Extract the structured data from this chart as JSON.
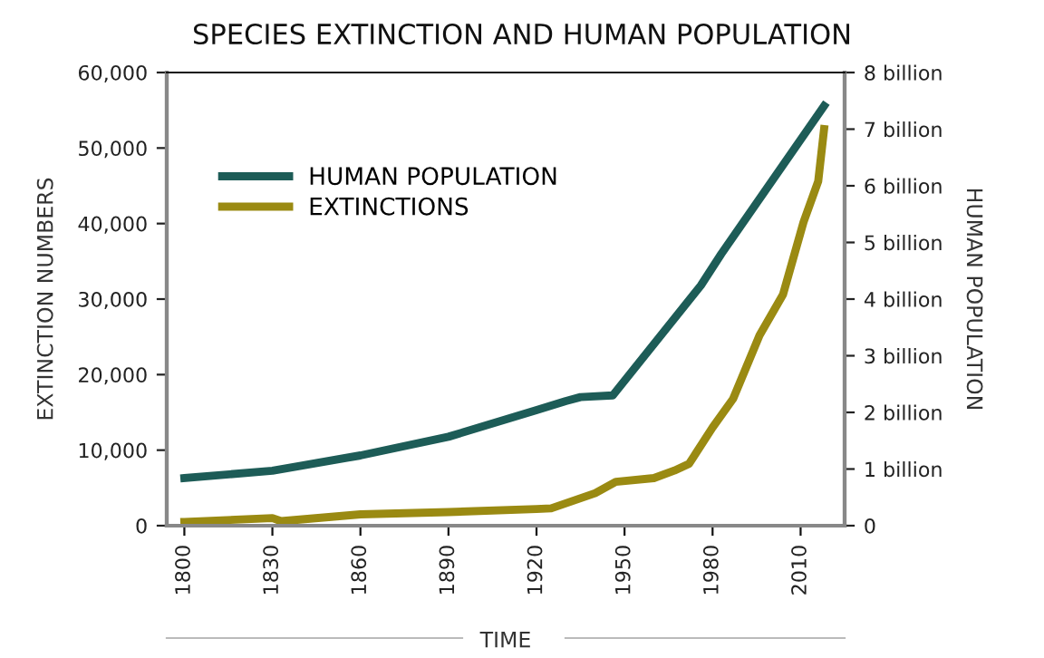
{
  "chart_data": {
    "type": "line",
    "title": "SPECIES EXTINCTION AND HUMAN POPULATION",
    "xlabel": "TIME",
    "ylabel": "EXTINCTION NUMBERS",
    "y2label": "HUMAN POPULATION",
    "xlim": [
      1794,
      2025
    ],
    "xticks": [
      1800,
      1830,
      1860,
      1890,
      1920,
      1950,
      1980,
      2010
    ],
    "ylim": [
      0,
      60000
    ],
    "yticks": [
      {
        "value": 0,
        "label": "0"
      },
      {
        "value": 10000,
        "label": "10,000"
      },
      {
        "value": 20000,
        "label": "20,000"
      },
      {
        "value": 30000,
        "label": "30,000"
      },
      {
        "value": 40000,
        "label": "40,000"
      },
      {
        "value": 50000,
        "label": "50,000"
      },
      {
        "value": 60000,
        "label": "60,000"
      }
    ],
    "y2lim": [
      0,
      8
    ],
    "y2ticks": [
      0,
      {
        "value": 1,
        "label": "1 billion"
      },
      {
        "value": 2,
        "label": "2 billion"
      },
      {
        "value": 3,
        "label": "3 billion"
      },
      {
        "value": 4,
        "label": "4 billion"
      },
      {
        "value": 5,
        "label": "5 billion"
      },
      {
        "value": 6,
        "label": "6 billion"
      },
      {
        "value": 7,
        "label": "7 billion"
      },
      {
        "value": 8,
        "label": "8 billion"
      }
    ],
    "legend": "top left",
    "grid": false,
    "line_style": "solid",
    "marker": "none",
    "series": [
      {
        "name": "HUMAN POPULATION",
        "color": "#1d5c57",
        "axis": "y2",
        "x": [
          1800,
          1830,
          1860,
          1890,
          1920,
          1930,
          1935,
          1946,
          1976,
          1983,
          2018
        ],
        "values": [
          0.84,
          0.97,
          1.24,
          1.57,
          2.04,
          2.2,
          2.27,
          2.3,
          4.24,
          4.8,
          7.41
        ]
      },
      {
        "name": "EXTINCTIONS",
        "color": "#9a8a12",
        "x": [
          1800,
          1830,
          1833,
          1860,
          1890,
          1920,
          1925,
          1940,
          1947,
          1960,
          1967,
          1972,
          1980,
          1987,
          1996,
          2004,
          2011,
          2016,
          2018
        ],
        "values": [
          500,
          1000,
          600,
          1500,
          1800,
          2200,
          2300,
          4300,
          5800,
          6300,
          7300,
          8200,
          13000,
          16800,
          25200,
          30600,
          40200,
          45600,
          52500
        ]
      }
    ]
  }
}
